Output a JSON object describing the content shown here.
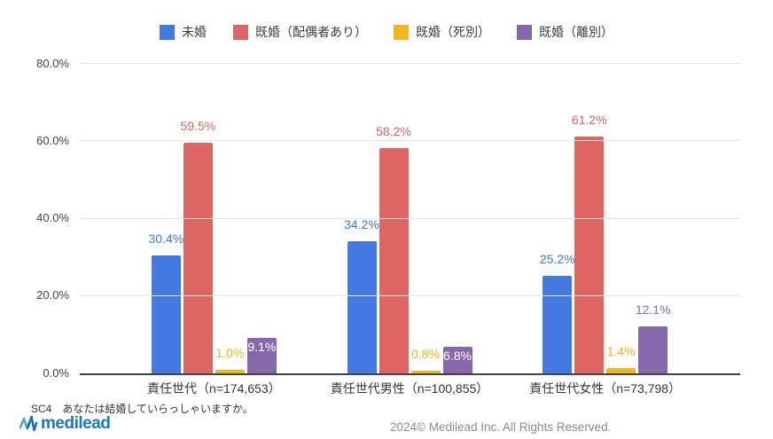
{
  "legend": {
    "items": [
      {
        "label": "未婚",
        "color": "#4379E0"
      },
      {
        "label": "既婚（配偶者あり）",
        "color": "#DD6663"
      },
      {
        "label": "既婚（死別）",
        "color": "#F1B71F"
      },
      {
        "label": "既婚（離別）",
        "color": "#8667AB"
      }
    ]
  },
  "chart_data": {
    "type": "bar",
    "title": "",
    "categories": [
      "責任世代（n=174,653）",
      "責任世代男性（n=100,855）",
      "責任世代女性（n=73,798）"
    ],
    "series": [
      {
        "name": "未婚",
        "color": "#4379E0",
        "label_color": "#3C78E8",
        "values": [
          30.4,
          34.2,
          25.2
        ]
      },
      {
        "name": "既婚（配偶者あり）",
        "color": "#DD6663",
        "label_color": "#E0625C",
        "values": [
          59.5,
          58.2,
          61.2
        ]
      },
      {
        "name": "既婚（死別）",
        "color": "#F1B71F",
        "label_color": "#EFB312",
        "values": [
          1.0,
          0.8,
          1.4
        ]
      },
      {
        "name": "既婚（離別）",
        "color": "#8667AB",
        "label_color": "#8667AB",
        "values": [
          9.1,
          6.8,
          12.1
        ]
      }
    ],
    "value_label_format": "percent_1dp",
    "annotation_placement": [
      [
        "above",
        "above",
        "above"
      ],
      [
        "above",
        "above",
        "above"
      ],
      [
        "above",
        "above",
        "above"
      ],
      [
        "inside",
        "inside",
        "above"
      ]
    ],
    "inside_label_color": "#FFFFFF",
    "xlabel": "",
    "ylabel": "",
    "ylim": [
      0,
      80
    ],
    "yticks": [
      {
        "value": 0,
        "label": "0.0%"
      },
      {
        "value": 20,
        "label": "20.0%"
      },
      {
        "value": 40,
        "label": "40.0%"
      },
      {
        "value": 60,
        "label": "60.0%"
      },
      {
        "value": 80,
        "label": "80.0%"
      }
    ],
    "grid": true,
    "legend_position": "top"
  },
  "footnote": "SC4　あなたは結婚していらっしゃいますか。",
  "footer": {
    "logo_text": "medilead",
    "copyright": "2024© Medilead Inc. All Rights Reserved."
  },
  "colors": {
    "axis": "#424242",
    "gridline": "#E3E3E3",
    "tick_text": "#444444",
    "category_text": "#333333",
    "copyright_text": "#8A8A8A",
    "logo_blue_light": "#56A0D8",
    "logo_blue_dark": "#1B6FB5"
  }
}
